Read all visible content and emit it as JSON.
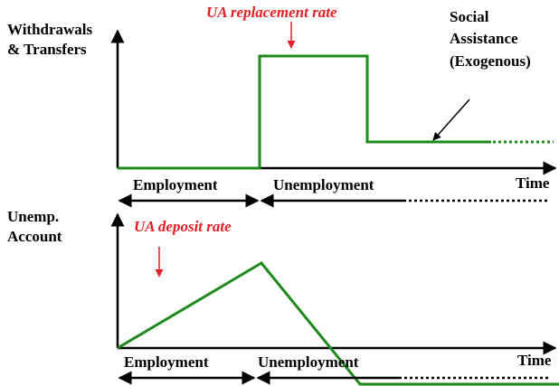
{
  "top_panel": {
    "y_axis_label": [
      "Withdrawals",
      "& Transfers"
    ],
    "annotation": "UA replacement rate",
    "callout": [
      "Social",
      "Assistance",
      "(Exogenous)"
    ],
    "phases": [
      "Employment",
      "Unemployment"
    ],
    "x_axis_label": "Time"
  },
  "bottom_panel": {
    "y_axis_label": [
      "Unemp.",
      "Account"
    ],
    "annotation": "UA deposit rate",
    "phases": [
      "Employment",
      "Unemployment"
    ],
    "x_axis_label": "Time"
  }
}
